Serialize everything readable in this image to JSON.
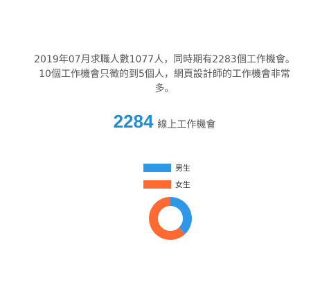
{
  "summary": {
    "line1": "2019年07月求職人數1077人，同時期有2283個工作機會。",
    "line2": "10個工作機會只徵的到5個人，網頁設計師的工作機會非常",
    "line3": "多。"
  },
  "online_jobs": {
    "count": "2284",
    "label": "線上工作機會"
  },
  "chart_data": {
    "type": "pie",
    "legend": [
      {
        "name": "男生",
        "color": "#2f97e8"
      },
      {
        "name": "女生",
        "color": "#ff6a33"
      }
    ],
    "values": [
      38,
      62
    ],
    "donut": true
  }
}
